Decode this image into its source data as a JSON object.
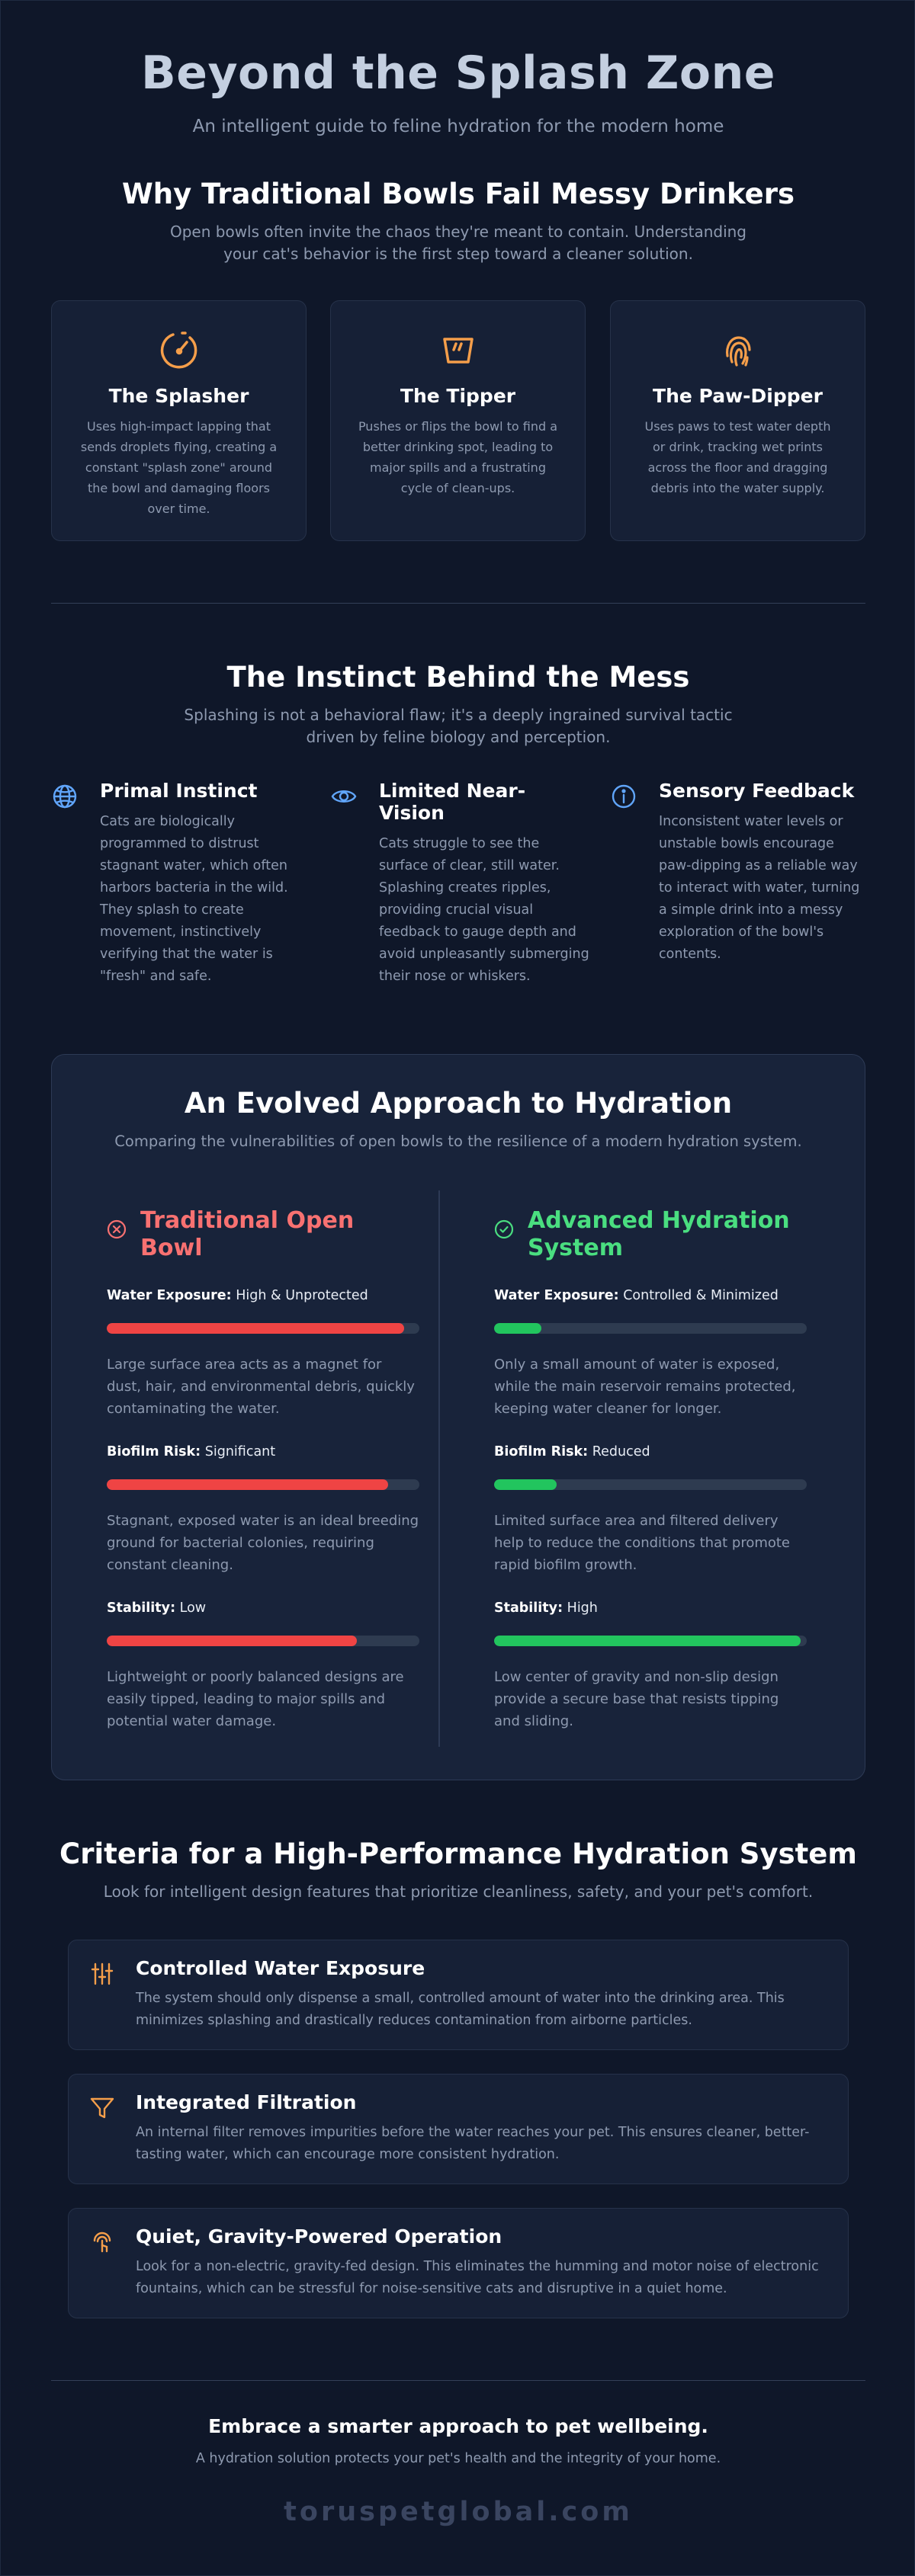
{
  "hero": {
    "title": "Beyond the Splash Zone",
    "subtitle": "An intelligent guide to feline hydration for the modern home"
  },
  "fail_section": {
    "title": "Why Traditional Bowls Fail Messy Drinkers",
    "subtitle_line1": "Open bowls often invite the chaos they're meant to contain. Understanding",
    "subtitle_line2": "your cat's behavior is the first step toward a cleaner solution.",
    "cards": [
      {
        "icon": "splash-gauge-icon",
        "title": "The Splasher",
        "text": "Uses high-impact lapping that sends droplets flying, creating a constant \"splash zone\" around the bowl and damaging floors over time."
      },
      {
        "icon": "tipped-bowl-icon",
        "title": "The Tipper",
        "text": "Pushes or flips the bowl to find a better drinking spot, leading to major spills and a frustrating cycle of clean-ups."
      },
      {
        "icon": "fingerprint-icon",
        "title": "The Paw-Dipper",
        "text": "Uses paws to test water depth or drink, tracking wet prints across the floor and dragging debris into the water supply."
      }
    ]
  },
  "instinct_section": {
    "title": "The Instinct Behind the Mess",
    "subtitle_line1": "Splashing is not a behavioral flaw; it's a deeply ingrained survival tactic",
    "subtitle_line2": "driven by feline biology and perception.",
    "items": [
      {
        "icon": "globe-icon",
        "title": "Primal Instinct",
        "text": "Cats are biologically programmed to distrust stagnant water, which often harbors bacteria in the wild. They splash to create movement, instinctively verifying that the water is \"fresh\" and safe."
      },
      {
        "icon": "eye-icon",
        "title": "Limited Near-Vision",
        "text": "Cats struggle to see the surface of clear, still water. Splashing creates ripples, providing crucial visual feedback to gauge depth and avoid unpleasantly submerging their nose or whiskers."
      },
      {
        "icon": "info-icon",
        "title": "Sensory Feedback",
        "text": "Inconsistent water levels or unstable bowls encourage paw-dipping as a reliable way to interact with water, turning a simple drink into a messy exploration of the bowl's contents."
      }
    ]
  },
  "compare_section": {
    "title": "An Evolved Approach to Hydration",
    "subtitle": "Comparing the vulnerabilities of open bowls to the resilience of a modern hydration system.",
    "colors": {
      "bad": "#f87171",
      "bad_bar": "#ef4444",
      "good": "#4ade80",
      "good_bar": "#22c55e",
      "track": "#2e3b50"
    },
    "traditional": {
      "title_line1": "Traditional Open",
      "title_line2": "Bowl",
      "metrics": [
        {
          "label": "Water Exposure:",
          "value": "High & Unprotected",
          "level": 0.95,
          "desc": "Large surface area acts as a magnet for dust, hair, and environmental debris, quickly contaminating the water."
        },
        {
          "label": "Biofilm Risk:",
          "value": "Significant",
          "level": 0.9,
          "desc": "Stagnant, exposed water is an ideal breeding ground for bacterial colonies, requiring constant cleaning."
        },
        {
          "label": "Stability:",
          "value": "Low",
          "level": 0.8,
          "desc": "Lightweight or poorly balanced designs are easily tipped, leading to major spills and potential water damage."
        }
      ]
    },
    "advanced": {
      "title_line1": "Advanced Hydration",
      "title_line2": "System",
      "metrics": [
        {
          "label": "Water Exposure:",
          "value": "Controlled & Minimized",
          "level": 0.15,
          "desc": "Only a small amount of water is exposed, while the main reservoir remains protected, keeping water cleaner for longer."
        },
        {
          "label": "Biofilm Risk:",
          "value": "Reduced",
          "level": 0.2,
          "desc": "Limited surface area and filtered delivery help to reduce the conditions that promote rapid biofilm growth."
        },
        {
          "label": "Stability:",
          "value": "High",
          "level": 0.98,
          "desc": "Low center of gravity and non-slip design provide a secure base that resists tipping and sliding."
        }
      ]
    }
  },
  "criteria_section": {
    "title": "Criteria for a High-Performance Hydration System",
    "subtitle": "Look for intelligent design features that prioritize cleanliness, safety, and your pet's comfort.",
    "items": [
      {
        "icon": "sliders-icon",
        "title": "Controlled Water Exposure",
        "text": "The system should only dispense a small, controlled amount of water into the drinking area. This minimizes splashing and drastically reduces contamination from airborne particles."
      },
      {
        "icon": "filter-icon",
        "title": "Integrated Filtration",
        "text": "An internal filter removes impurities before the water reaches your pet. This ensures cleaner, better-tasting water, which can encourage more consistent hydration."
      },
      {
        "icon": "quiet-touch-icon",
        "title": "Quiet, Gravity-Powered Operation",
        "text": "Look for a non-electric, gravity-fed design. This eliminates the humming and motor noise of electronic fountains, which can be stressful for noise-sensitive cats and disruptive in a quiet home."
      }
    ]
  },
  "footer": {
    "title": "Embrace a smarter approach to pet wellbeing.",
    "subtitle": "A hydration solution protects your pet's health and the integrity of your home.",
    "brand": "toruspetglobal.com"
  }
}
